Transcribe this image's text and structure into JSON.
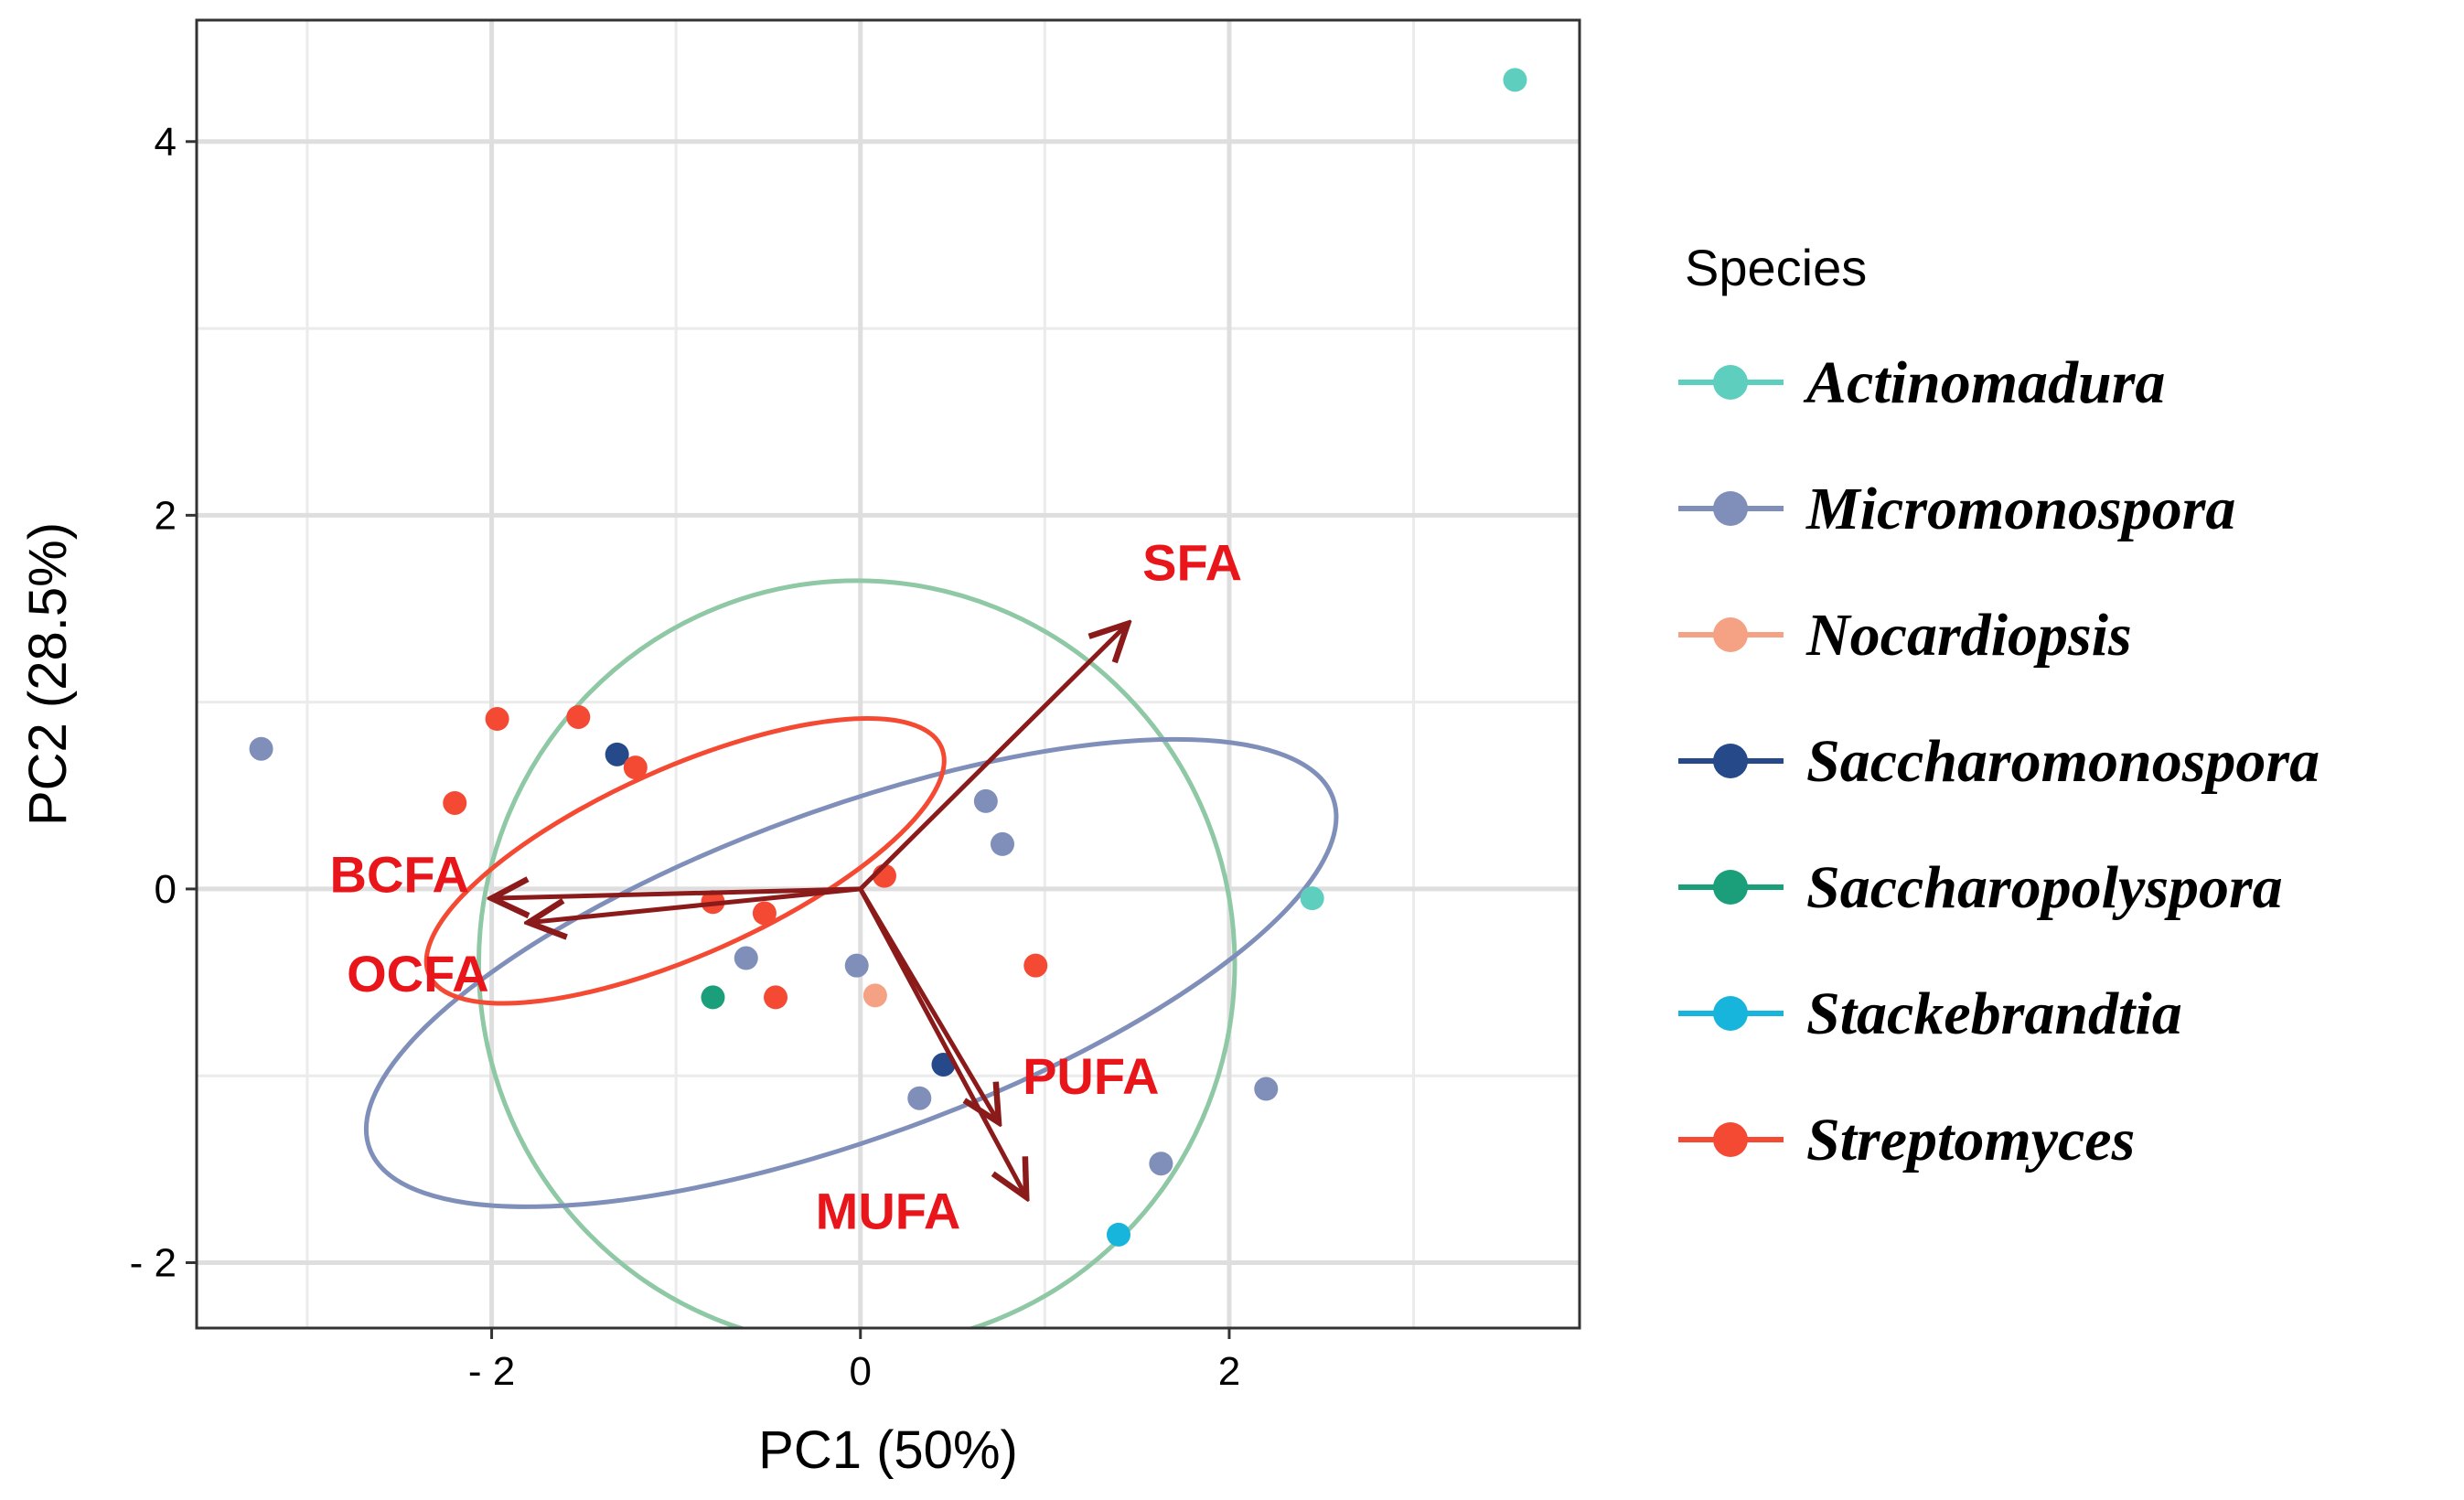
{
  "chart_data": {
    "type": "scatter",
    "title": "",
    "xlabel": "PC1 (50%)",
    "ylabel": "PC2 (28.5%)",
    "xlim": [
      -3.6,
      3.9
    ],
    "ylim": [
      -2.35,
      4.65
    ],
    "xticks": [
      -2,
      0,
      2
    ],
    "yticks": [
      -2,
      0,
      2,
      4
    ],
    "xtick_labels": [
      "- 2",
      "0",
      "2"
    ],
    "ytick_labels": [
      "- 2",
      "0",
      "2",
      "4"
    ],
    "grid": true,
    "legend": {
      "title": "Species",
      "position": "right",
      "entries": [
        {
          "name": "Actinomadura",
          "color": "#5ecfbf"
        },
        {
          "name": "Micromonospora",
          "color": "#7f8fba"
        },
        {
          "name": "Nocardiopsis",
          "color": "#f4a184"
        },
        {
          "name": "Saccharomonospora",
          "color": "#26498a"
        },
        {
          "name": "Saccharopolyspora",
          "color": "#1b9e7a"
        },
        {
          "name": "Stackebrandtia",
          "color": "#17b5dc"
        },
        {
          "name": "Streptomyces",
          "color": "#f44a33"
        }
      ]
    },
    "series": [
      {
        "name": "Actinomadura",
        "color": "#5ecfbf",
        "points": [
          [
            3.55,
            4.33
          ],
          [
            2.45,
            -0.05
          ]
        ]
      },
      {
        "name": "Micromonospora",
        "color": "#7f8fba",
        "points": [
          [
            -3.25,
            0.75
          ],
          [
            0.68,
            0.47
          ],
          [
            0.77,
            0.24
          ],
          [
            -0.62,
            -0.37
          ],
          [
            -0.02,
            -0.41
          ],
          [
            0.32,
            -1.12
          ],
          [
            2.2,
            -1.07
          ],
          [
            1.63,
            -1.47
          ]
        ]
      },
      {
        "name": "Nocardiopsis",
        "color": "#f4a184",
        "points": [
          [
            0.08,
            -0.57
          ]
        ]
      },
      {
        "name": "Saccharomonospora",
        "color": "#26498a",
        "points": [
          [
            -1.32,
            0.72
          ],
          [
            0.45,
            -0.94
          ]
        ]
      },
      {
        "name": "Saccharopolyspora",
        "color": "#1b9e7a",
        "points": [
          [
            -0.8,
            -0.58
          ]
        ]
      },
      {
        "name": "Stackebrandtia",
        "color": "#17b5dc",
        "points": [
          [
            1.4,
            -1.85
          ]
        ]
      },
      {
        "name": "Streptomyces",
        "color": "#f44a33",
        "points": [
          [
            -1.97,
            0.91
          ],
          [
            -1.53,
            0.92
          ],
          [
            -1.22,
            0.65
          ],
          [
            -2.2,
            0.46
          ],
          [
            0.13,
            0.07
          ],
          [
            -0.8,
            -0.07
          ],
          [
            -0.52,
            -0.13
          ],
          [
            0.95,
            -0.41
          ],
          [
            -0.46,
            -0.58
          ]
        ]
      }
    ],
    "ellipses": [
      {
        "group": "Actinomadura",
        "color": "#8fc8a5",
        "center": [
          -0.02,
          -0.4
        ],
        "rx": 2.05,
        "ry": 2.05,
        "angle": 0
      },
      {
        "group": "Micromonospora",
        "color": "#7f8fba",
        "center": [
          -0.05,
          -0.45
        ],
        "rx": 2.78,
        "ry": 0.88,
        "angle": -20
      },
      {
        "group": "Streptomyces",
        "color": "#f44a33",
        "center": [
          -0.95,
          0.15
        ],
        "rx": 1.52,
        "ry": 0.5,
        "angle": -24
      }
    ],
    "loadings": [
      {
        "name": "SFA",
        "end": [
          1.45,
          1.42
        ],
        "label_at": [
          1.8,
          1.75
        ]
      },
      {
        "name": "BCFA",
        "end": [
          -2.0,
          -0.05
        ],
        "label_at": [
          -2.5,
          0.08
        ]
      },
      {
        "name": "OCFA",
        "end": [
          -1.8,
          -0.18
        ],
        "label_at": [
          -2.4,
          -0.45
        ]
      },
      {
        "name": "PUFA",
        "end": [
          0.75,
          -1.25
        ],
        "label_at": [
          1.25,
          -1.0
        ]
      },
      {
        "name": "MUFA",
        "end": [
          0.9,
          -1.65
        ],
        "label_at": [
          0.15,
          -1.72
        ]
      }
    ],
    "loading_arrow_color": "#8b1a1a",
    "loading_label_color": "#e8161b"
  }
}
